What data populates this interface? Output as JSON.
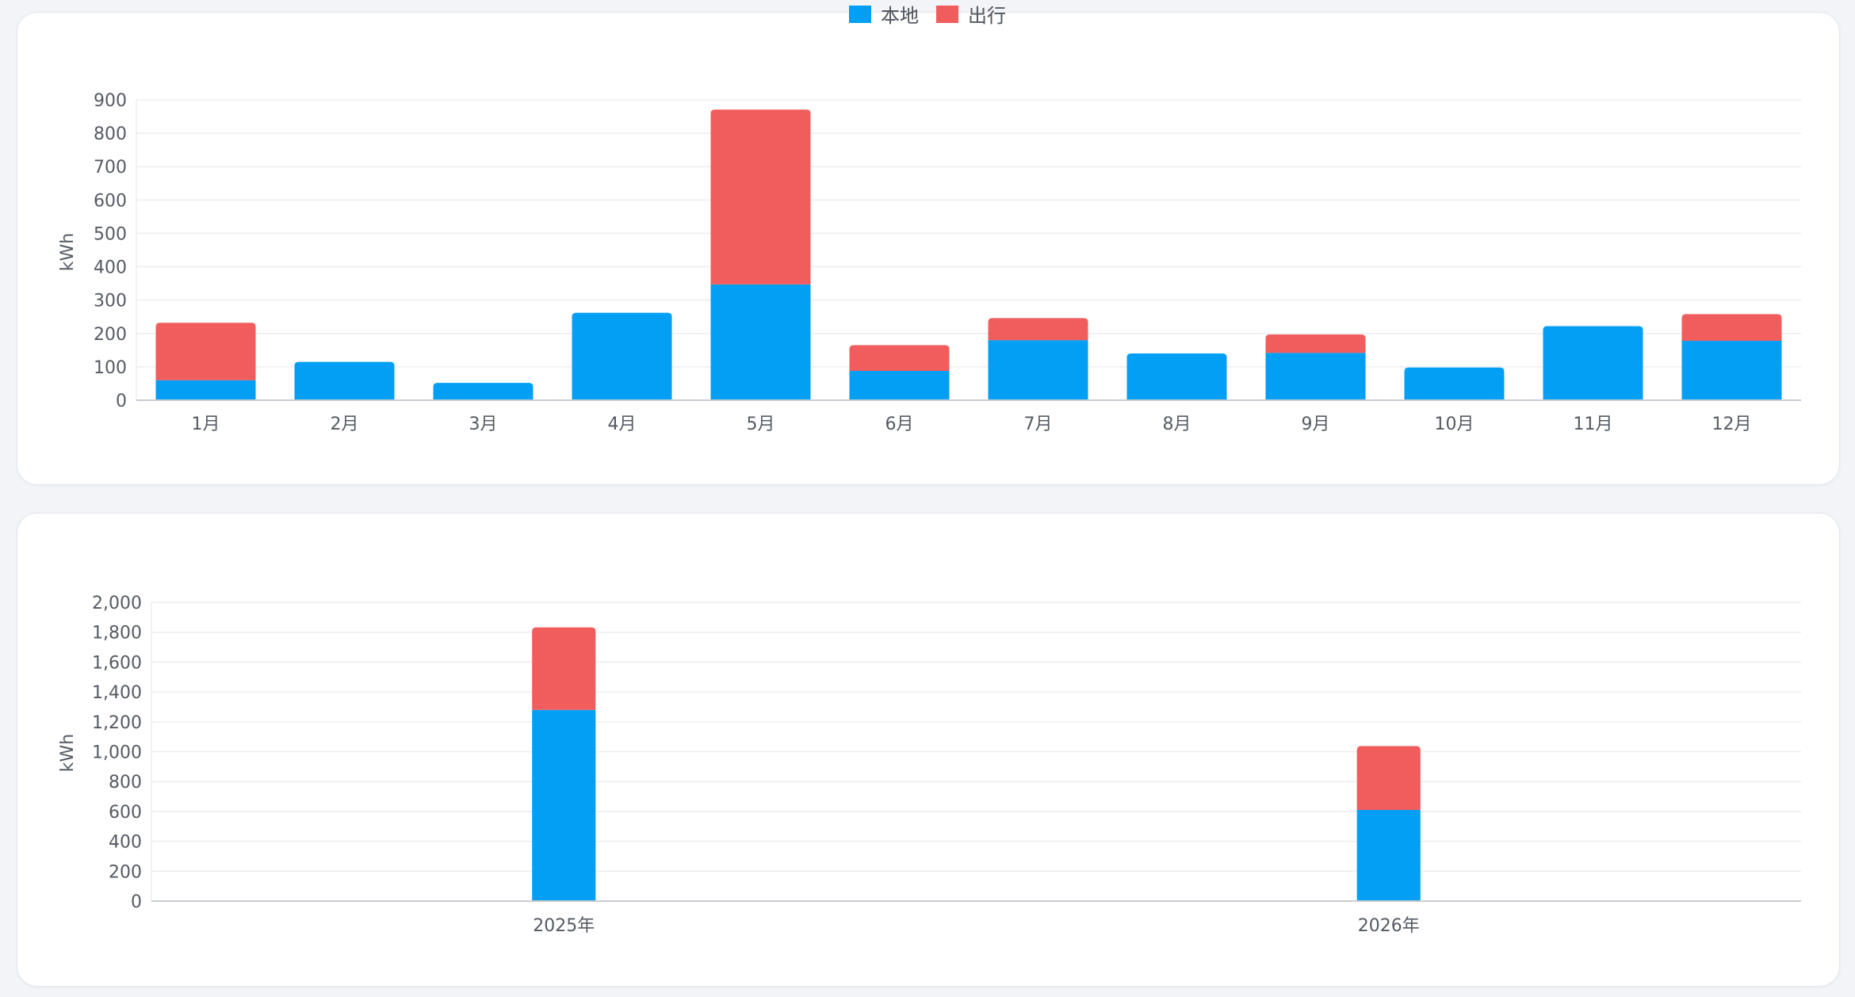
{
  "colors": {
    "local": "#039ff5",
    "outbound": "#f15d5d",
    "grid": "#ebedf0",
    "axis": "#c8ccd2"
  },
  "legend": {
    "local": "本地",
    "outbound": "出行"
  },
  "chart_data": [
    {
      "type": "bar",
      "stacked": true,
      "categories": [
        "1月",
        "2月",
        "3月",
        "4月",
        "5月",
        "6月",
        "7月",
        "8月",
        "9月",
        "10月",
        "11月",
        "12月"
      ],
      "series": [
        {
          "name": "本地",
          "values": [
            60,
            115,
            52,
            262,
            347,
            88,
            180,
            140,
            142,
            98,
            222,
            178
          ]
        },
        {
          "name": "出行",
          "values": [
            172,
            0,
            0,
            0,
            524,
            77,
            66,
            0,
            55,
            0,
            0,
            80
          ]
        }
      ],
      "ylabel": "kWh",
      "ylim": [
        0,
        900
      ],
      "yticks": [
        0,
        100,
        200,
        300,
        400,
        500,
        600,
        700,
        800,
        900
      ],
      "ytick_labels": [
        "0",
        "100",
        "200",
        "300",
        "400",
        "500",
        "600",
        "700",
        "800",
        "900"
      ],
      "grid": true,
      "legend_position": "top-center"
    },
    {
      "type": "bar",
      "stacked": true,
      "categories": [
        "2025年",
        "2026年"
      ],
      "series": [
        {
          "name": "本地",
          "values": [
            1280,
            610
          ]
        },
        {
          "name": "出行",
          "values": [
            552,
            428
          ]
        }
      ],
      "ylabel": "kWh",
      "ylim": [
        0,
        2000
      ],
      "yticks": [
        0,
        200,
        400,
        600,
        800,
        1000,
        1200,
        1400,
        1600,
        1800,
        2000
      ],
      "ytick_labels": [
        "0",
        "200",
        "400",
        "600",
        "800",
        "1,000",
        "1,200",
        "1,400",
        "1,600",
        "1,800",
        "2,000"
      ],
      "grid": true,
      "legend_position": "top-center"
    }
  ]
}
